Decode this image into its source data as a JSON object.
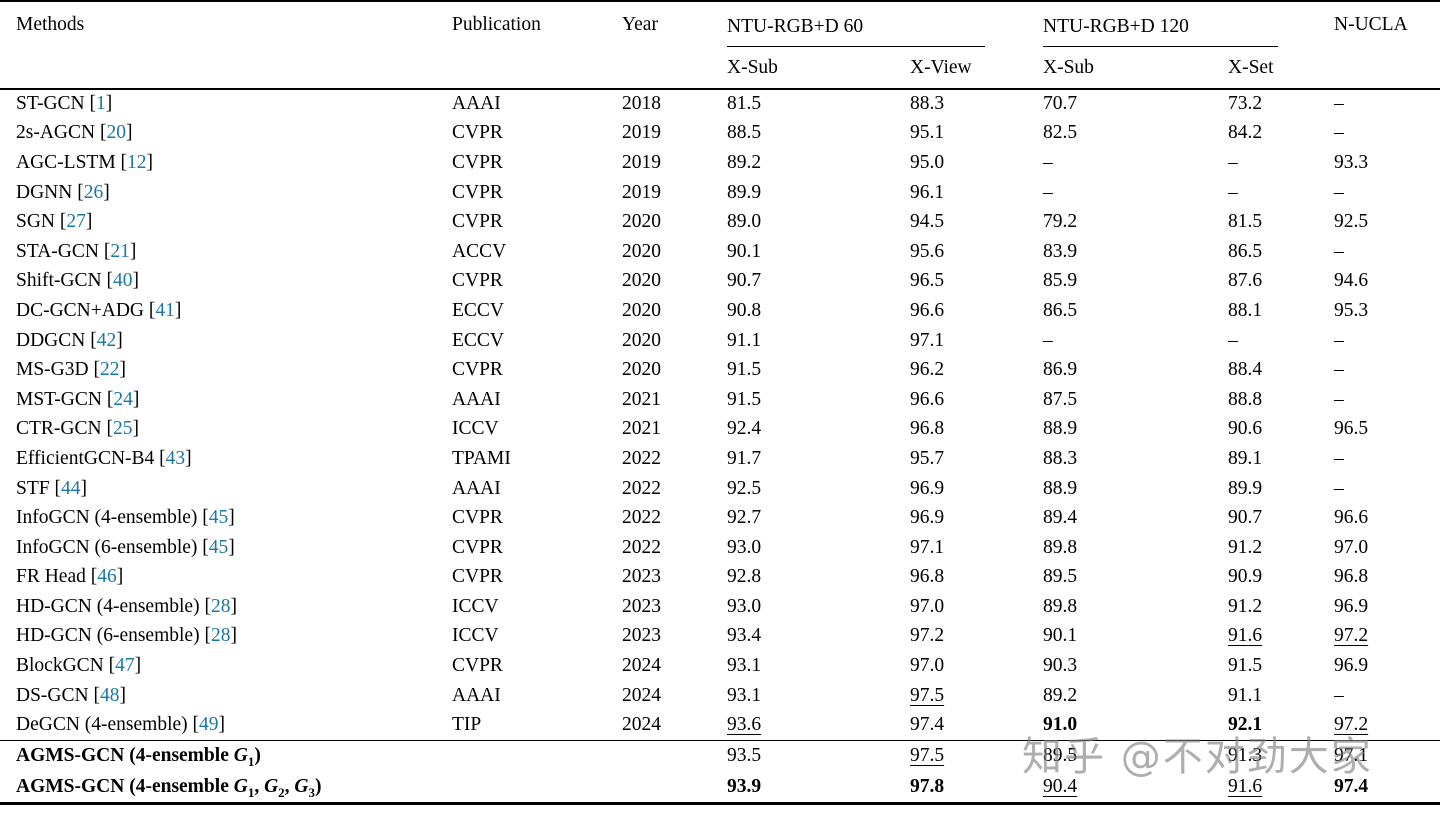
{
  "accent_color": "#1878a5",
  "header": {
    "methods": "Methods",
    "publication": "Publication",
    "year": "Year",
    "group1": "NTU-RGB+D 60",
    "group2": "NTU-RGB+D 120",
    "nucla": "N-UCLA",
    "subs": [
      "X-Sub",
      "X-View",
      "X-Sub",
      "X-Set"
    ]
  },
  "rows": [
    {
      "method": "ST-GCN",
      "ref": "1",
      "pub": "AAAI",
      "year": "2018",
      "vals": [
        {
          "t": "81.5"
        },
        {
          "t": "88.3"
        },
        {
          "t": "70.7"
        },
        {
          "t": "73.2"
        },
        {
          "t": "–"
        }
      ]
    },
    {
      "method": "2s-AGCN",
      "ref": "20",
      "pub": "CVPR",
      "year": "2019",
      "vals": [
        {
          "t": "88.5"
        },
        {
          "t": "95.1"
        },
        {
          "t": "82.5"
        },
        {
          "t": "84.2"
        },
        {
          "t": "–"
        }
      ]
    },
    {
      "method": "AGC-LSTM",
      "ref": "12",
      "pub": "CVPR",
      "year": "2019",
      "vals": [
        {
          "t": "89.2"
        },
        {
          "t": "95.0"
        },
        {
          "t": "–"
        },
        {
          "t": "–"
        },
        {
          "t": "93.3"
        }
      ]
    },
    {
      "method": "DGNN",
      "ref": "26",
      "pub": "CVPR",
      "year": "2019",
      "vals": [
        {
          "t": "89.9"
        },
        {
          "t": "96.1"
        },
        {
          "t": "–"
        },
        {
          "t": "–"
        },
        {
          "t": "–"
        }
      ]
    },
    {
      "method": "SGN",
      "ref": "27",
      "pub": "CVPR",
      "year": "2020",
      "vals": [
        {
          "t": "89.0"
        },
        {
          "t": "94.5"
        },
        {
          "t": "79.2"
        },
        {
          "t": "81.5"
        },
        {
          "t": "92.5"
        }
      ]
    },
    {
      "method": "STA-GCN",
      "ref": "21",
      "pub": "ACCV",
      "year": "2020",
      "vals": [
        {
          "t": "90.1"
        },
        {
          "t": "95.6"
        },
        {
          "t": "83.9"
        },
        {
          "t": "86.5"
        },
        {
          "t": "–"
        }
      ]
    },
    {
      "method": "Shift-GCN",
      "ref": "40",
      "pub": "CVPR",
      "year": "2020",
      "vals": [
        {
          "t": "90.7"
        },
        {
          "t": "96.5"
        },
        {
          "t": "85.9"
        },
        {
          "t": "87.6"
        },
        {
          "t": "94.6"
        }
      ]
    },
    {
      "method": "DC-GCN+ADG",
      "ref": "41",
      "pub": "ECCV",
      "year": "2020",
      "vals": [
        {
          "t": "90.8"
        },
        {
          "t": "96.6"
        },
        {
          "t": "86.5"
        },
        {
          "t": "88.1"
        },
        {
          "t": "95.3"
        }
      ]
    },
    {
      "method": "DDGCN",
      "ref": "42",
      "pub": "ECCV",
      "year": "2020",
      "vals": [
        {
          "t": "91.1"
        },
        {
          "t": "97.1"
        },
        {
          "t": "–"
        },
        {
          "t": "–"
        },
        {
          "t": "–"
        }
      ]
    },
    {
      "method": "MS-G3D",
      "ref": "22",
      "pub": "CVPR",
      "year": "2020",
      "vals": [
        {
          "t": "91.5"
        },
        {
          "t": "96.2"
        },
        {
          "t": "86.9"
        },
        {
          "t": "88.4"
        },
        {
          "t": "–"
        }
      ]
    },
    {
      "method": "MST-GCN",
      "ref": "24",
      "pub": "AAAI",
      "year": "2021",
      "vals": [
        {
          "t": "91.5"
        },
        {
          "t": "96.6"
        },
        {
          "t": "87.5"
        },
        {
          "t": "88.8"
        },
        {
          "t": "–"
        }
      ]
    },
    {
      "method": "CTR-GCN",
      "ref": "25",
      "pub": "ICCV",
      "year": "2021",
      "vals": [
        {
          "t": "92.4"
        },
        {
          "t": "96.8"
        },
        {
          "t": "88.9"
        },
        {
          "t": "90.6"
        },
        {
          "t": "96.5"
        }
      ]
    },
    {
      "method": "EfficientGCN-B4",
      "ref": "43",
      "pub": "TPAMI",
      "year": "2022",
      "vals": [
        {
          "t": "91.7"
        },
        {
          "t": "95.7"
        },
        {
          "t": "88.3"
        },
        {
          "t": "89.1"
        },
        {
          "t": "–"
        }
      ]
    },
    {
      "method": "STF",
      "ref": "44",
      "pub": "AAAI",
      "year": "2022",
      "vals": [
        {
          "t": "92.5"
        },
        {
          "t": "96.9"
        },
        {
          "t": "88.9"
        },
        {
          "t": "89.9"
        },
        {
          "t": "–"
        }
      ]
    },
    {
      "method": "InfoGCN (4-ensemble)",
      "ref": "45",
      "pub": "CVPR",
      "year": "2022",
      "vals": [
        {
          "t": "92.7"
        },
        {
          "t": "96.9"
        },
        {
          "t": "89.4"
        },
        {
          "t": "90.7"
        },
        {
          "t": "96.6"
        }
      ]
    },
    {
      "method": "InfoGCN (6-ensemble)",
      "ref": "45",
      "pub": "CVPR",
      "year": "2022",
      "vals": [
        {
          "t": "93.0"
        },
        {
          "t": "97.1"
        },
        {
          "t": "89.8"
        },
        {
          "t": "91.2"
        },
        {
          "t": "97.0"
        }
      ]
    },
    {
      "method": "FR Head",
      "ref": "46",
      "pub": "CVPR",
      "year": "2023",
      "vals": [
        {
          "t": "92.8"
        },
        {
          "t": "96.8"
        },
        {
          "t": "89.5"
        },
        {
          "t": "90.9"
        },
        {
          "t": "96.8"
        }
      ]
    },
    {
      "method": "HD-GCN (4-ensemble)",
      "ref": "28",
      "pub": "ICCV",
      "year": "2023",
      "vals": [
        {
          "t": "93.0"
        },
        {
          "t": "97.0"
        },
        {
          "t": "89.8"
        },
        {
          "t": "91.2"
        },
        {
          "t": "96.9"
        }
      ]
    },
    {
      "method": "HD-GCN (6-ensemble)",
      "ref": "28",
      "pub": "ICCV",
      "year": "2023",
      "vals": [
        {
          "t": "93.4"
        },
        {
          "t": "97.2"
        },
        {
          "t": "90.1"
        },
        {
          "t": "91.6",
          "u": true
        },
        {
          "t": "97.2",
          "u": true
        }
      ]
    },
    {
      "method": "BlockGCN",
      "ref": "47",
      "pub": "CVPR",
      "year": "2024",
      "vals": [
        {
          "t": "93.1"
        },
        {
          "t": "97.0"
        },
        {
          "t": "90.3"
        },
        {
          "t": "91.5"
        },
        {
          "t": "96.9"
        }
      ]
    },
    {
      "method": "DS-GCN",
      "ref": "48",
      "pub": "AAAI",
      "year": "2024",
      "vals": [
        {
          "t": "93.1"
        },
        {
          "t": "97.5",
          "u": true
        },
        {
          "t": "89.2"
        },
        {
          "t": "91.1"
        },
        {
          "t": "–"
        }
      ]
    },
    {
      "method": "DeGCN (4-ensemble)",
      "ref": "49",
      "pub": "TIP",
      "year": "2024",
      "vals": [
        {
          "t": "93.6",
          "u": true
        },
        {
          "t": "97.4"
        },
        {
          "t": "91.0",
          "b": true
        },
        {
          "t": "92.1",
          "b": true
        },
        {
          "t": "97.2",
          "u": true
        }
      ]
    }
  ],
  "footer_rows": [
    {
      "method": "AGMS-GCN (4-ensemble G_1)",
      "pub": "",
      "year": "",
      "vals": [
        {
          "t": "93.5"
        },
        {
          "t": "97.5",
          "u": true
        },
        {
          "t": "89.5"
        },
        {
          "t": "91.3"
        },
        {
          "t": "97.1"
        }
      ]
    },
    {
      "method": "AGMS-GCN (4-ensemble G_1, G_2, G_3)",
      "pub": "",
      "year": "",
      "vals": [
        {
          "t": "93.9",
          "b": true
        },
        {
          "t": "97.8",
          "b": true
        },
        {
          "t": "90.4",
          "u": true
        },
        {
          "t": "91.6",
          "u": true
        },
        {
          "t": "97.4",
          "b": true
        }
      ]
    }
  ],
  "watermark": {
    "text": "知乎 @不对劲大家"
  }
}
